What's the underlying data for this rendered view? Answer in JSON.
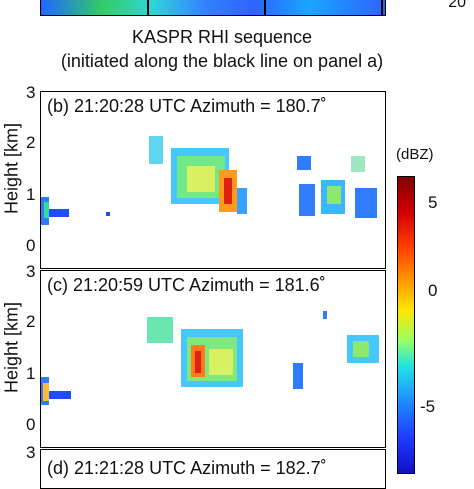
{
  "top_panel": {
    "colorbar_tick": "20"
  },
  "caption": {
    "line1": "KASPR RHI sequence",
    "line2": "(initiated along the black line on panel a)"
  },
  "panels": [
    {
      "title": "(b) 21:20:28 UTC Azimuth = 180.7˚",
      "ylabel": "Height [km]",
      "yticks": [
        "3",
        "2",
        "1",
        "0"
      ]
    },
    {
      "title": "(c) 21:20:59 UTC Azimuth = 181.6˚",
      "ylabel": "Height [km]",
      "yticks": [
        "3",
        "2",
        "1",
        "0"
      ]
    },
    {
      "title": "(d) 21:21:28 UTC Azimuth = 182.7˚",
      "ylabel": "Height [km]",
      "yticks": [
        "3"
      ]
    }
  ],
  "colorbar": {
    "title": "(dBZ)",
    "ticks": [
      "5",
      "0",
      "-5"
    ]
  }
}
